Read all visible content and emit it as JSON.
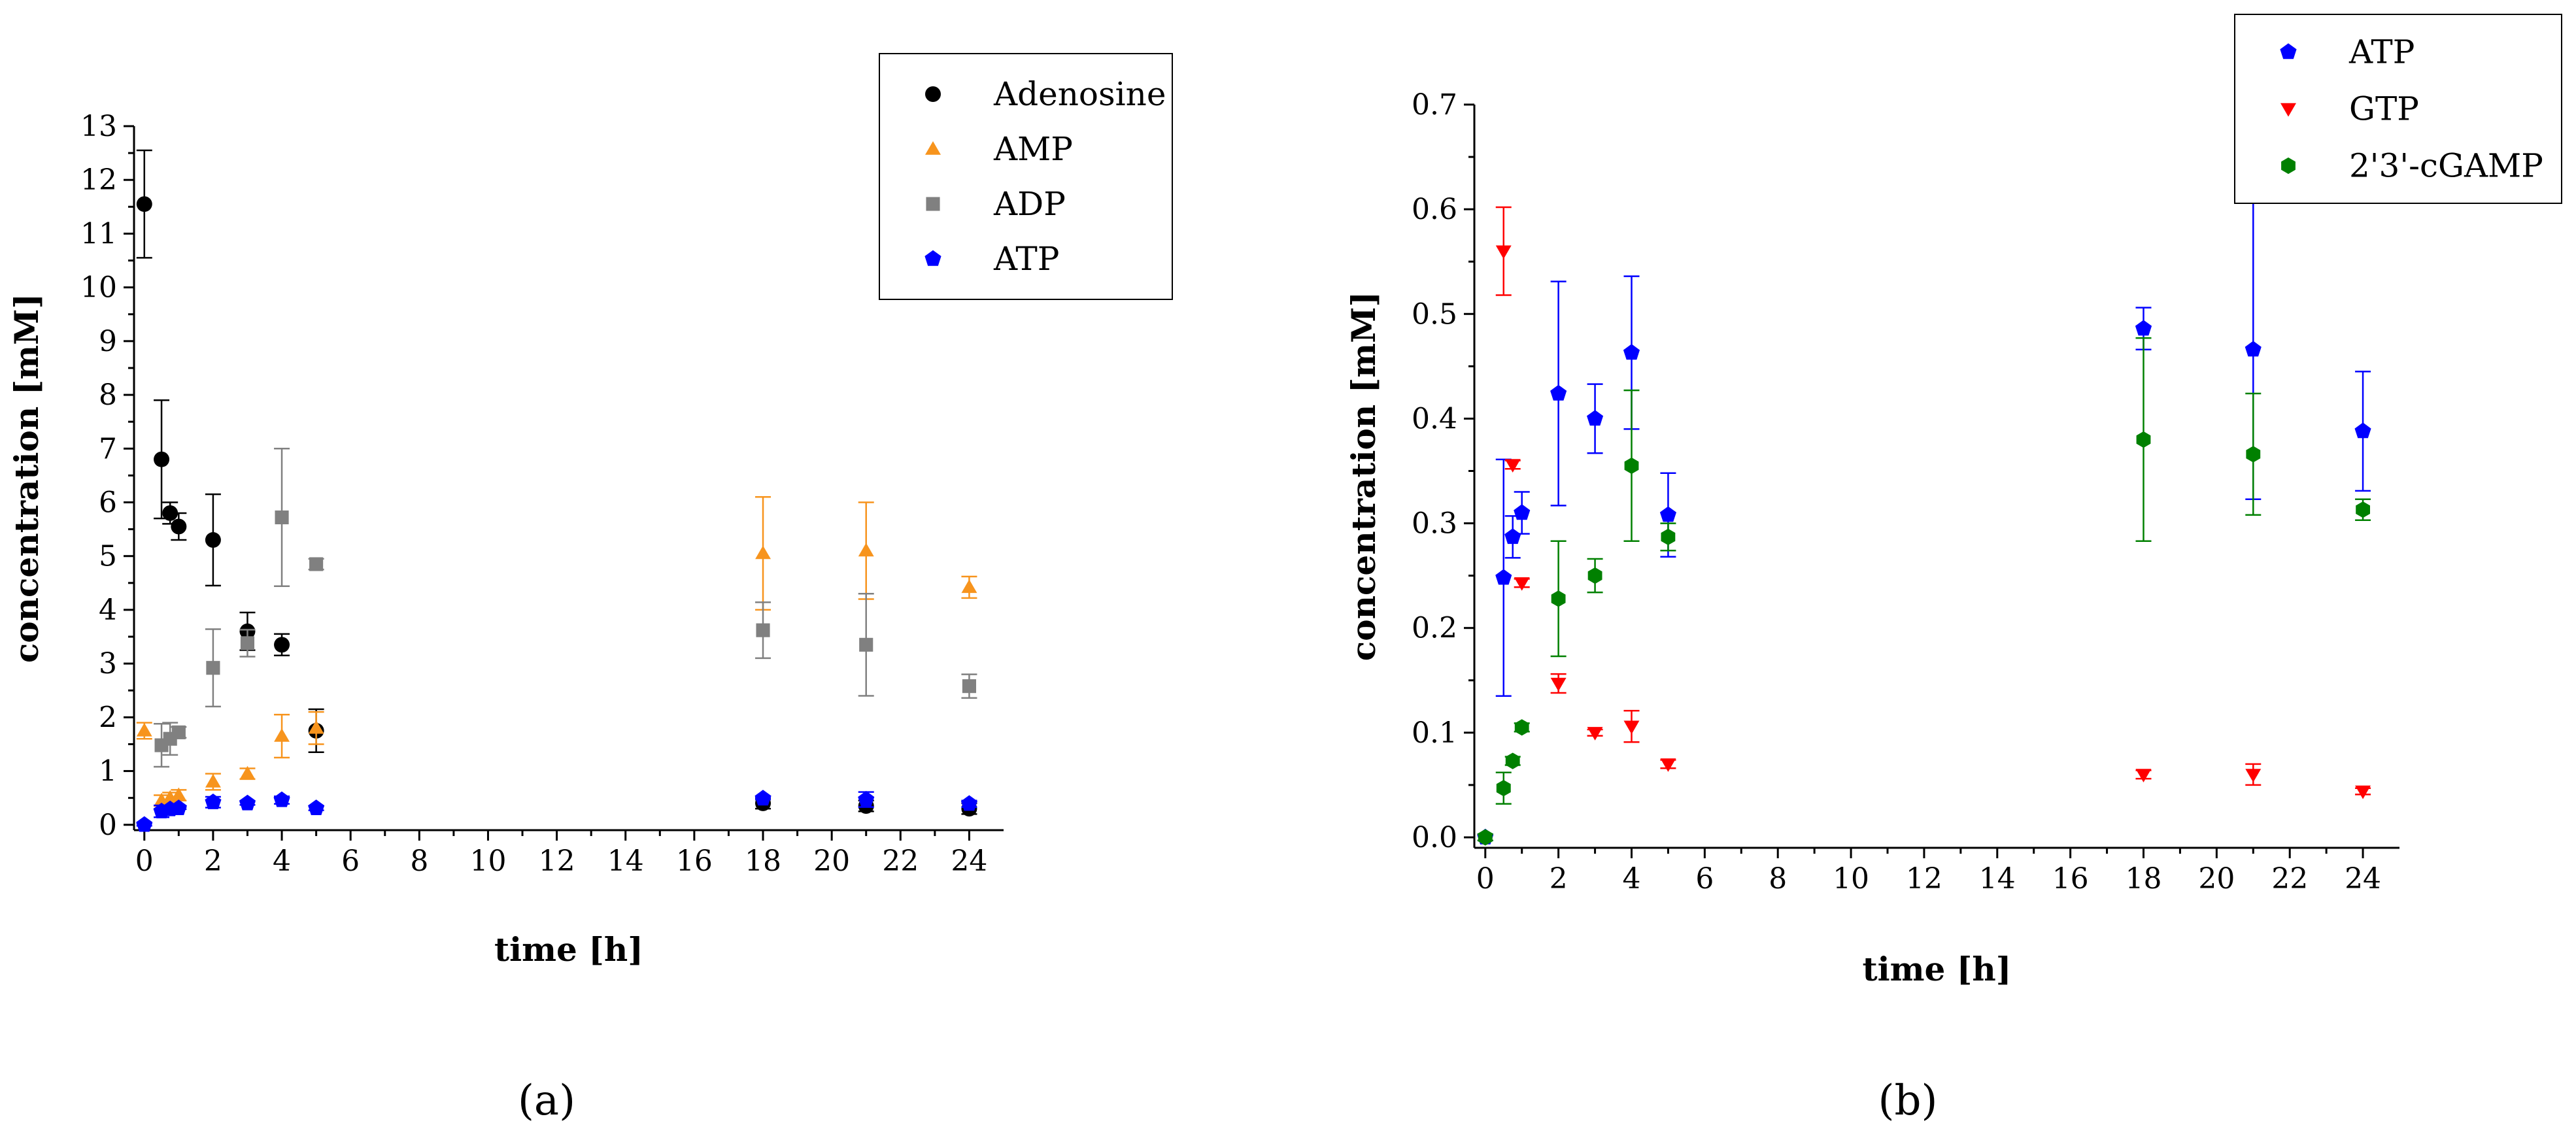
{
  "figure": {
    "panel_labels": [
      "(a)",
      "(b)"
    ]
  },
  "chart_data": [
    {
      "id": "a",
      "type": "scatter",
      "panel_label": "(a)",
      "xlabel": "time [h]",
      "ylabel": "concentration [mM]",
      "xlim": [
        -0.3,
        25
      ],
      "ylim": [
        -0.1,
        13
      ],
      "xticks": [
        0,
        2,
        4,
        6,
        8,
        10,
        12,
        14,
        16,
        18,
        20,
        22,
        24
      ],
      "yticks": [
        0,
        1,
        2,
        3,
        4,
        5,
        6,
        7,
        8,
        9,
        10,
        11,
        12,
        13
      ],
      "legend_position": "top-right",
      "series": [
        {
          "name": "Adenosine",
          "color": "#000000",
          "marker": "circle",
          "x": [
            0,
            0.5,
            0.75,
            1,
            2,
            3,
            4,
            5,
            18,
            21,
            24
          ],
          "y": [
            11.55,
            6.8,
            5.8,
            5.55,
            5.3,
            3.6,
            3.35,
            1.75,
            0.4,
            0.35,
            0.3
          ],
          "err": [
            1.0,
            1.1,
            0.2,
            0.25,
            0.85,
            0.35,
            0.2,
            0.4,
            0.1,
            0.1,
            0.1
          ]
        },
        {
          "name": "AMP",
          "color": "#F7941D",
          "marker": "triangle",
          "x": [
            0,
            0.5,
            0.75,
            1,
            2,
            3,
            4,
            5,
            18,
            21,
            24
          ],
          "y": [
            1.75,
            0.45,
            0.5,
            0.55,
            0.8,
            0.95,
            1.65,
            1.8,
            5.05,
            5.1,
            4.42
          ],
          "err": [
            0.15,
            0.1,
            0.1,
            0.1,
            0.15,
            0.1,
            0.4,
            0.3,
            1.05,
            0.9,
            0.2
          ]
        },
        {
          "name": "ADP",
          "color": "#808080",
          "marker": "square",
          "x": [
            0.5,
            0.75,
            1,
            2,
            3,
            4,
            5,
            18,
            21,
            24
          ],
          "y": [
            1.48,
            1.6,
            1.72,
            2.92,
            3.38,
            5.72,
            4.85,
            3.62,
            3.35,
            2.58
          ],
          "err": [
            0.4,
            0.3,
            0.1,
            0.72,
            0.25,
            1.28,
            0.1,
            0.52,
            0.95,
            0.22
          ]
        },
        {
          "name": "ATP",
          "color": "#0000FF",
          "marker": "pentagon",
          "x": [
            0,
            0.5,
            0.75,
            1,
            2,
            3,
            4,
            5,
            18,
            21,
            24
          ],
          "y": [
            0.0,
            0.25,
            0.29,
            0.31,
            0.42,
            0.4,
            0.46,
            0.31,
            0.49,
            0.47,
            0.39
          ],
          "err": [
            0.02,
            0.11,
            0.02,
            0.02,
            0.1,
            0.03,
            0.07,
            0.04,
            0.02,
            0.14,
            0.06
          ]
        }
      ]
    },
    {
      "id": "b",
      "type": "scatter",
      "panel_label": "(b)",
      "xlabel": "time [h]",
      "ylabel": "concentration [mM]",
      "xlim": [
        -0.3,
        25
      ],
      "ylim": [
        -0.01,
        0.7
      ],
      "xticks": [
        0,
        2,
        4,
        6,
        8,
        10,
        12,
        14,
        16,
        18,
        20,
        22,
        24
      ],
      "yticks": [
        0.0,
        0.1,
        0.2,
        0.3,
        0.4,
        0.5,
        0.6,
        0.7
      ],
      "tick_decimals": 1,
      "legend_position": "top-right",
      "series": [
        {
          "name": "ATP",
          "color": "#0000FF",
          "marker": "pentagon",
          "x": [
            0,
            0.5,
            0.75,
            1,
            2,
            3,
            4,
            5,
            18,
            21,
            24
          ],
          "y": [
            0.0,
            0.248,
            0.287,
            0.31,
            0.424,
            0.4,
            0.463,
            0.308,
            0.486,
            0.466,
            0.388
          ],
          "err": [
            0.003,
            0.113,
            0.02,
            0.02,
            0.107,
            0.033,
            0.073,
            0.04,
            0.02,
            0.143,
            0.057
          ]
        },
        {
          "name": "GTP",
          "color": "#FF0000",
          "marker": "triangle-down",
          "x": [
            0.5,
            0.75,
            1,
            2,
            3,
            4,
            5,
            18,
            21,
            24
          ],
          "y": [
            0.56,
            0.356,
            0.243,
            0.147,
            0.1,
            0.106,
            0.07,
            0.06,
            0.06,
            0.044
          ],
          "err": [
            0.042,
            0.004,
            0.004,
            0.009,
            0.003,
            0.015,
            0.004,
            0.004,
            0.01,
            0.003
          ]
        },
        {
          "name": "2'3'-cGAMP",
          "color": "#008000",
          "marker": "hexagon",
          "x": [
            0,
            0.5,
            0.75,
            1,
            2,
            3,
            4,
            5,
            18,
            21,
            24
          ],
          "y": [
            0.0,
            0.047,
            0.073,
            0.105,
            0.228,
            0.25,
            0.355,
            0.287,
            0.38,
            0.366,
            0.313
          ],
          "err": [
            0.003,
            0.015,
            0.004,
            0.004,
            0.055,
            0.016,
            0.072,
            0.013,
            0.097,
            0.058,
            0.01
          ]
        }
      ]
    }
  ]
}
